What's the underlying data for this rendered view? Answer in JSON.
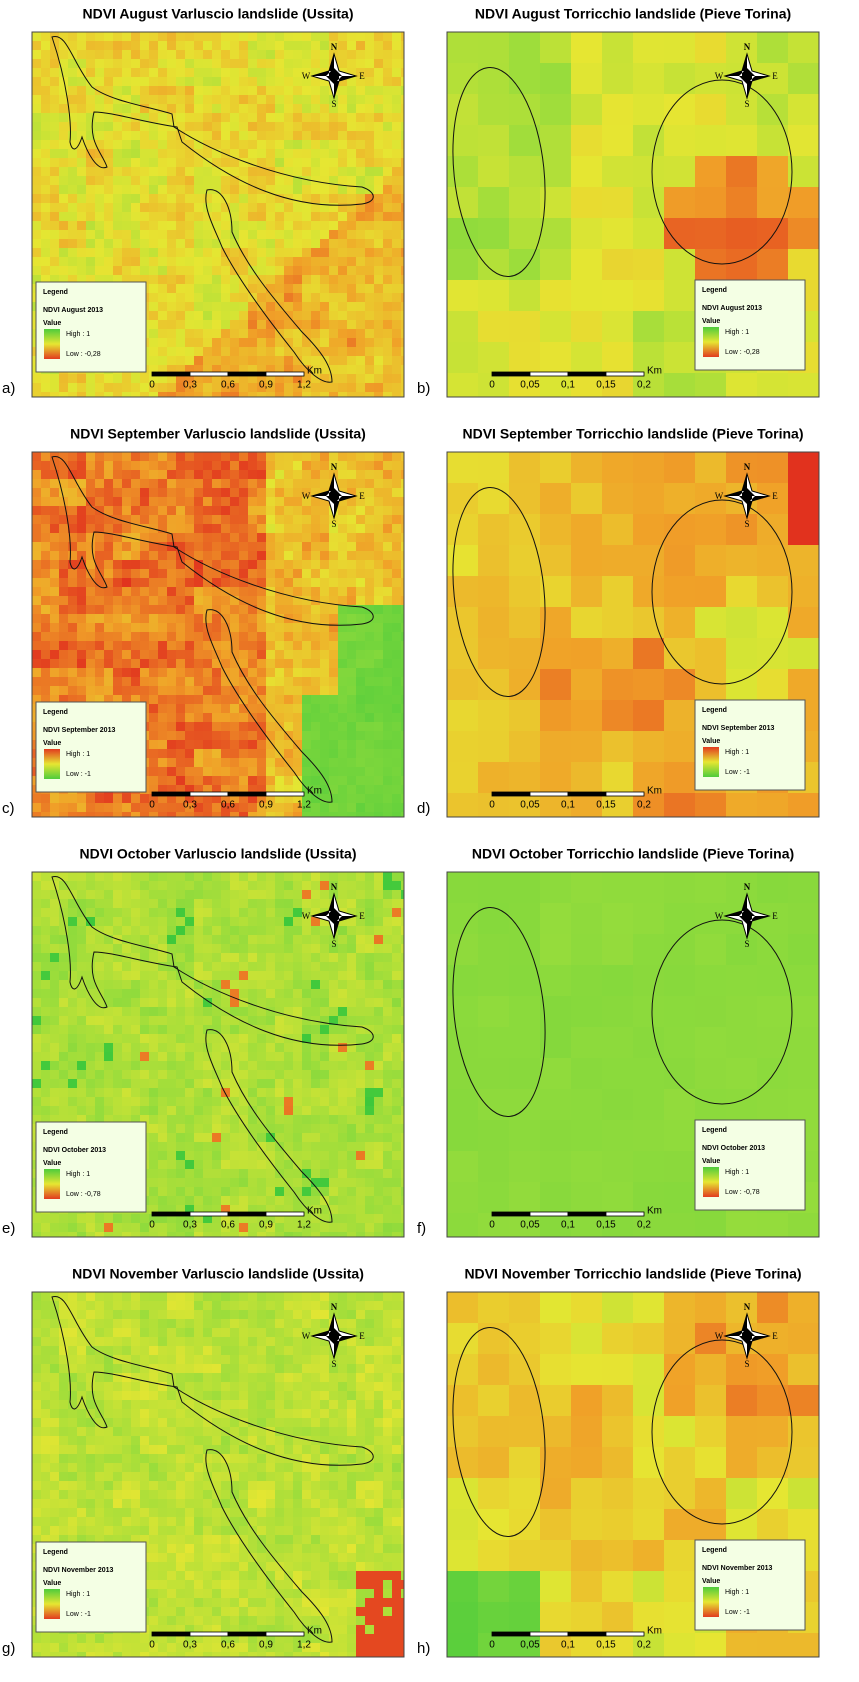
{
  "panels": [
    {
      "letter": "a)",
      "title": "NDVI August Varluscio landslide (Ussita)",
      "legend": {
        "heading": "Legend",
        "layer": "NDVI August 2013",
        "field": "Value",
        "high": "High : 1",
        "low": "Low : -0,28"
      },
      "scale": [
        "0",
        "0,3",
        "0,6",
        "0,9",
        "1,2"
      ],
      "scale_unit": "Km",
      "compass": {
        "n": "N",
        "s": "S",
        "w": "W",
        "e": "E"
      }
    },
    {
      "letter": "b)",
      "title": "NDVI August Torricchio landslide (Pieve Torina)",
      "legend": {
        "heading": "Legend",
        "layer": "NDVI August 2013",
        "field": "Value",
        "high": "High : 1",
        "low": "Low : -0,28"
      },
      "scale": [
        "0",
        "0,05",
        "0,1",
        "0,15",
        "0,2"
      ],
      "scale_unit": "Km",
      "compass": {
        "n": "N",
        "s": "S",
        "w": "W",
        "e": "E"
      }
    },
    {
      "letter": "c)",
      "title": "NDVI September Varluscio landslide (Ussita)",
      "legend": {
        "heading": "Legend",
        "layer": "NDVI September 2013",
        "field": "Value",
        "high": "High : 1",
        "low": "Low : -1"
      },
      "scale": [
        "0",
        "0,3",
        "0,6",
        "0,9",
        "1,2"
      ],
      "scale_unit": "Km",
      "compass": {
        "n": "N",
        "s": "S",
        "w": "W",
        "e": "E"
      }
    },
    {
      "letter": "d)",
      "title": "NDVI September Torricchio landslide (Pieve Torina)",
      "legend": {
        "heading": "Legend",
        "layer": "NDVI September 2013",
        "field": "Value",
        "high": "High : 1",
        "low": "Low : -1"
      },
      "scale": [
        "0",
        "0,05",
        "0,1",
        "0,15",
        "0,2"
      ],
      "scale_unit": "Km",
      "compass": {
        "n": "N",
        "s": "S",
        "w": "W",
        "e": "E"
      }
    },
    {
      "letter": "e)",
      "title": "NDVI October Varluscio landslide (Ussita)",
      "legend": {
        "heading": "Legend",
        "layer": "NDVI October 2013",
        "field": "Value",
        "high": "High : 1",
        "low": "Low : -0,78"
      },
      "scale": [
        "0",
        "0,3",
        "0,6",
        "0,9",
        "1,2"
      ],
      "scale_unit": "Km",
      "compass": {
        "n": "N",
        "s": "S",
        "w": "W",
        "e": "E"
      }
    },
    {
      "letter": "f)",
      "title": "NDVI October Torricchio landslide (Pieve Torina)",
      "legend": {
        "heading": "Legend",
        "layer": "NDVI October 2013",
        "field": "Value",
        "high": "High : 1",
        "low": "Low : -0,78"
      },
      "scale": [
        "0",
        "0,05",
        "0,1",
        "0,15",
        "0,2"
      ],
      "scale_unit": "Km",
      "compass": {
        "n": "N",
        "s": "S",
        "w": "W",
        "e": "E"
      }
    },
    {
      "letter": "g)",
      "title": "NDVI November Varluscio landslide (Ussita)",
      "legend": {
        "heading": "Legend",
        "layer": "NDVI November 2013",
        "field": "Value",
        "high": "High : 1",
        "low": "Low : -1"
      },
      "scale": [
        "0",
        "0,3",
        "0,6",
        "0,9",
        "1,2"
      ],
      "scale_unit": "Km",
      "compass": {
        "n": "N",
        "s": "S",
        "w": "W",
        "e": "E"
      }
    },
    {
      "letter": "h)",
      "title": "NDVI November Torricchio landslide (Pieve Torina)",
      "legend": {
        "heading": "Legend",
        "layer": "NDVI November 2013",
        "field": "Value",
        "high": "High : 1",
        "low": "Low : -1"
      },
      "scale": [
        "0",
        "0,05",
        "0,1",
        "0,15",
        "0,2"
      ],
      "scale_unit": "Km",
      "compass": {
        "n": "N",
        "s": "S",
        "w": "W",
        "e": "E"
      }
    }
  ]
}
